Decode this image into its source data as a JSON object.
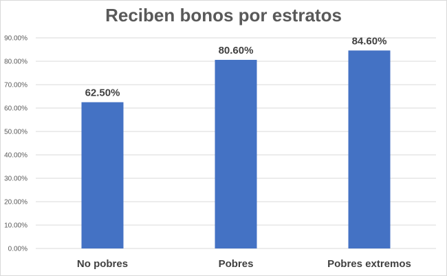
{
  "chart_data": {
    "type": "bar",
    "title": "Reciben bonos por estratos",
    "categories": [
      "No pobres",
      "Pobres",
      "Pobres extremos"
    ],
    "values": [
      62.5,
      80.6,
      84.6
    ],
    "data_labels": [
      "62.50%",
      "80.60%",
      "84.60%"
    ],
    "y_ticks": [
      0,
      10,
      20,
      30,
      40,
      50,
      60,
      70,
      80,
      90
    ],
    "y_tick_labels": [
      "0.00%",
      "10.00%",
      "20.00%",
      "30.00%",
      "40.00%",
      "50.00%",
      "60.00%",
      "70.00%",
      "80.00%",
      "90.00%"
    ],
    "ylim": [
      0,
      90
    ],
    "xlabel": "",
    "ylabel": "",
    "grid": true,
    "legend": "none",
    "bar_color": "#4472c4",
    "grid_color": "#d9d9d9"
  }
}
